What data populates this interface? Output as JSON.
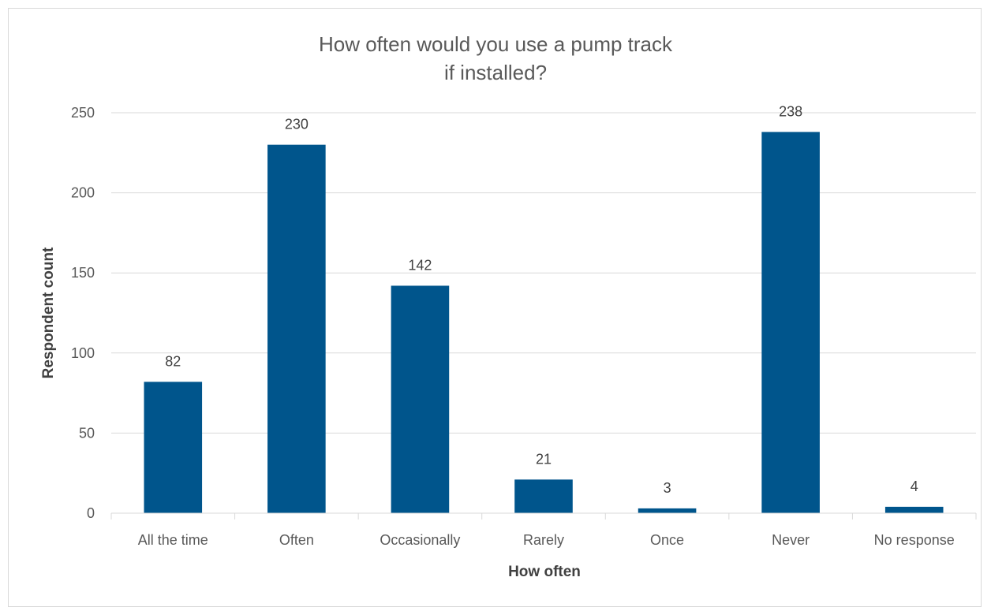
{
  "chart_data": {
    "type": "bar",
    "title_line1": "How often would you use a pump track",
    "title_line2": "if installed?",
    "xlabel": "How often",
    "ylabel": "Respondent count",
    "categories": [
      "All the time",
      "Often",
      "Occasionally",
      "Rarely",
      "Once",
      "Never",
      "No response"
    ],
    "values": [
      82,
      230,
      142,
      21,
      3,
      238,
      4
    ],
    "ylim": [
      0,
      250
    ],
    "yticks": [
      0,
      50,
      100,
      150,
      200,
      250
    ],
    "grid": true,
    "bar_color": "#00558C",
    "grid_color": "#d9d9d9"
  }
}
